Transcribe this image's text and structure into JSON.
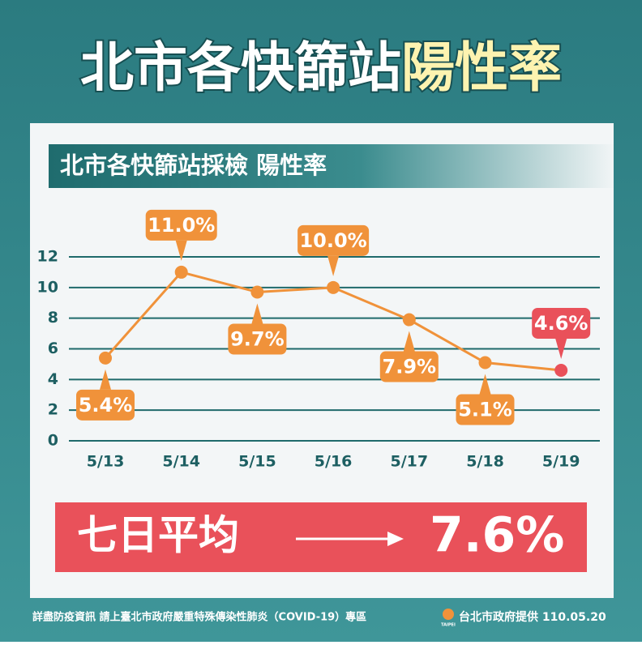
{
  "header": {
    "title": "北市各快篩站",
    "title_highlight": "陽性率"
  },
  "chart_data": {
    "type": "line",
    "title": "北市各快篩站採檢 陽性率",
    "categories": [
      "5/13",
      "5/14",
      "5/15",
      "5/16",
      "5/17",
      "5/18",
      "5/19"
    ],
    "series": [
      {
        "color": "#f0923a",
        "values": [
          5.4,
          11.0,
          9.7,
          10.0,
          7.9,
          5.1,
          4.6
        ],
        "value_labels": [
          "5.4%",
          "11.0%",
          "9.7%",
          "10.0%",
          "7.9%",
          "5.1%",
          "4.6%"
        ],
        "point_colors": [
          "#f0923a",
          "#f0923a",
          "#f0923a",
          "#f0923a",
          "#f0923a",
          "#f0923a",
          "#e9515a"
        ]
      }
    ],
    "ylim": [
      0,
      12
    ],
    "yticks": [
      0,
      2,
      4,
      6,
      8,
      10,
      12
    ],
    "grid": true
  },
  "summary": {
    "label": "七日平均",
    "value": "7.6%"
  },
  "footer": {
    "note": "詳盡防疫資訊 請上臺北市政府嚴重特殊傳染性肺炎（COVID-19）專區",
    "logo": "TAIPEI",
    "credit": "台北市政府提供 110.05.20"
  }
}
